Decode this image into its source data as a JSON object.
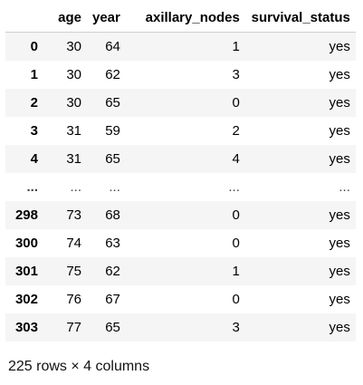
{
  "dataframe": {
    "columns": [
      "age",
      "year",
      "axillary_nodes",
      "survival_status"
    ],
    "rows": [
      {
        "index": "0",
        "values": [
          "30",
          "64",
          "1",
          "yes"
        ]
      },
      {
        "index": "1",
        "values": [
          "30",
          "62",
          "3",
          "yes"
        ]
      },
      {
        "index": "2",
        "values": [
          "30",
          "65",
          "0",
          "yes"
        ]
      },
      {
        "index": "3",
        "values": [
          "31",
          "59",
          "2",
          "yes"
        ]
      },
      {
        "index": "4",
        "values": [
          "31",
          "65",
          "4",
          "yes"
        ]
      },
      {
        "index": "...",
        "values": [
          "...",
          "...",
          "...",
          "..."
        ]
      },
      {
        "index": "298",
        "values": [
          "73",
          "68",
          "0",
          "yes"
        ]
      },
      {
        "index": "300",
        "values": [
          "74",
          "63",
          "0",
          "yes"
        ]
      },
      {
        "index": "301",
        "values": [
          "75",
          "62",
          "1",
          "yes"
        ]
      },
      {
        "index": "302",
        "values": [
          "76",
          "67",
          "0",
          "yes"
        ]
      },
      {
        "index": "303",
        "values": [
          "77",
          "65",
          "3",
          "yes"
        ]
      }
    ],
    "shape_text": "225 rows × 4 columns"
  }
}
